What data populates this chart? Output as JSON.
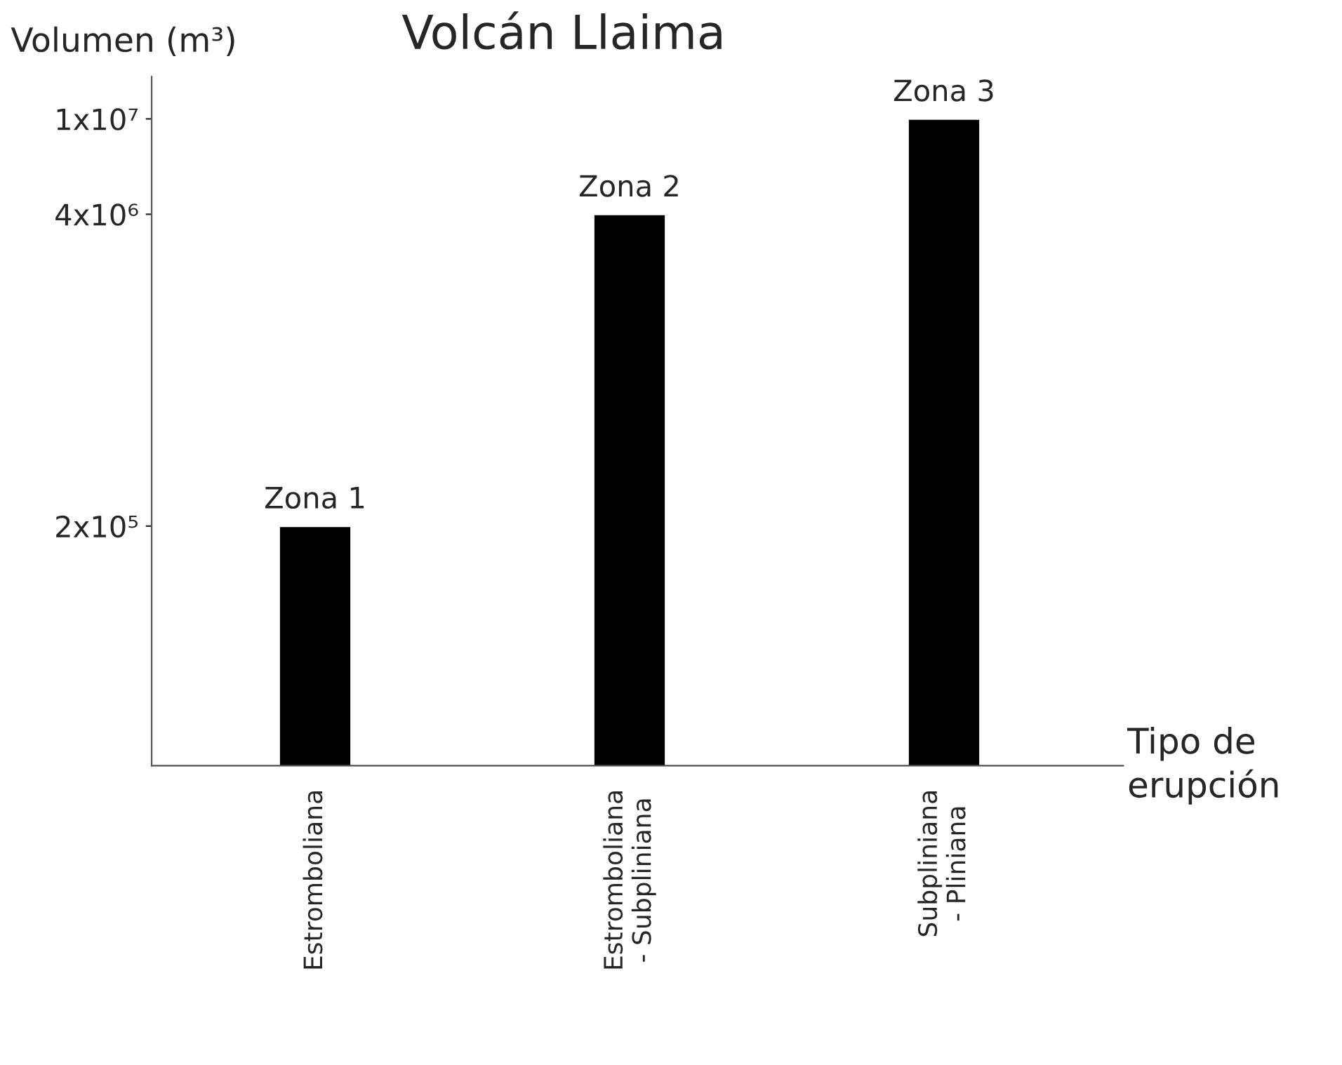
{
  "chart_data": {
    "type": "bar",
    "title": "Volcán Llaima",
    "ylabel": "Volumen (m³)",
    "xlabel": "Tipo de\nerupción",
    "categories": [
      "Estromboliana",
      "Estromboliana\n- Subpliniana",
      "Subpliniana\n- Pliniana"
    ],
    "values": [
      200000,
      4000000,
      10000000
    ],
    "color": "#000000",
    "ylim": [
      20000,
      15000000
    ],
    "log": true,
    "yticks": [
      {
        "value": 200000,
        "label": "2x10⁵"
      },
      {
        "value": 4000000,
        "label": "4x10⁶"
      },
      {
        "value": 10000000,
        "label": "1x10⁷"
      }
    ],
    "annotations": [
      {
        "text": "Zona 1",
        "x": "Estromboliana",
        "y": 200000
      },
      {
        "text": "Zona 2",
        "x": "Estromboliana\n- Subpliniana",
        "y": 4000000
      },
      {
        "text": "Zona 3",
        "x": "Subpliniana\n- Pliniana",
        "y": 10000000
      }
    ],
    "grid": false,
    "legend": false
  }
}
